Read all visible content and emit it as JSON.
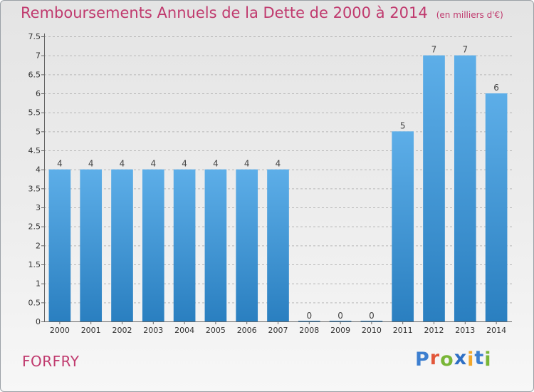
{
  "title": "Remboursements Annuels de la Dette de 2000 à 2014",
  "unit": "(en milliers d'€)",
  "commune": "FORFRY",
  "logo": {
    "text": "Proxiti",
    "letters": [
      {
        "char": "P",
        "color": "#3d7fd0"
      },
      {
        "char": "r",
        "color": "#e2573a"
      },
      {
        "char": "o",
        "color": "#79b637"
      },
      {
        "char": "x",
        "color": "#2e6fc4"
      },
      {
        "char": "i",
        "color": "#f2a72b"
      },
      {
        "char": "t",
        "color": "#3d7fd0"
      },
      {
        "char": "i",
        "color": "#79b637"
      }
    ]
  },
  "colors": {
    "title": "#c03a6e",
    "bar_top": "#5daee8",
    "bar_bottom": "#2a7fc0",
    "grid": "#b8b8b8"
  },
  "chart_data": {
    "type": "bar",
    "title": "Remboursements Annuels de la Dette de 2000 à 2014",
    "subtitle": "(en milliers d'€)",
    "categories": [
      "2000",
      "2001",
      "2002",
      "2003",
      "2004",
      "2005",
      "2006",
      "2007",
      "2008",
      "2009",
      "2010",
      "2011",
      "2012",
      "2013",
      "2014"
    ],
    "values": [
      4,
      4,
      4,
      4,
      4,
      4,
      4,
      4,
      0,
      0,
      0,
      5,
      7,
      7,
      6
    ],
    "data_labels": [
      "4",
      "4",
      "4",
      "4",
      "4",
      "4",
      "4",
      "4",
      "0",
      "0",
      "0",
      "5",
      "7",
      "7",
      "6"
    ],
    "yticks": [
      "0",
      "0.5",
      "1",
      "1.5",
      "2",
      "2.5",
      "3",
      "3.5",
      "4",
      "4.5",
      "5",
      "5.5",
      "6",
      "6.5",
      "7",
      "7.5"
    ],
    "ylim": [
      0,
      7.5
    ],
    "grid": true,
    "legend": "none"
  }
}
